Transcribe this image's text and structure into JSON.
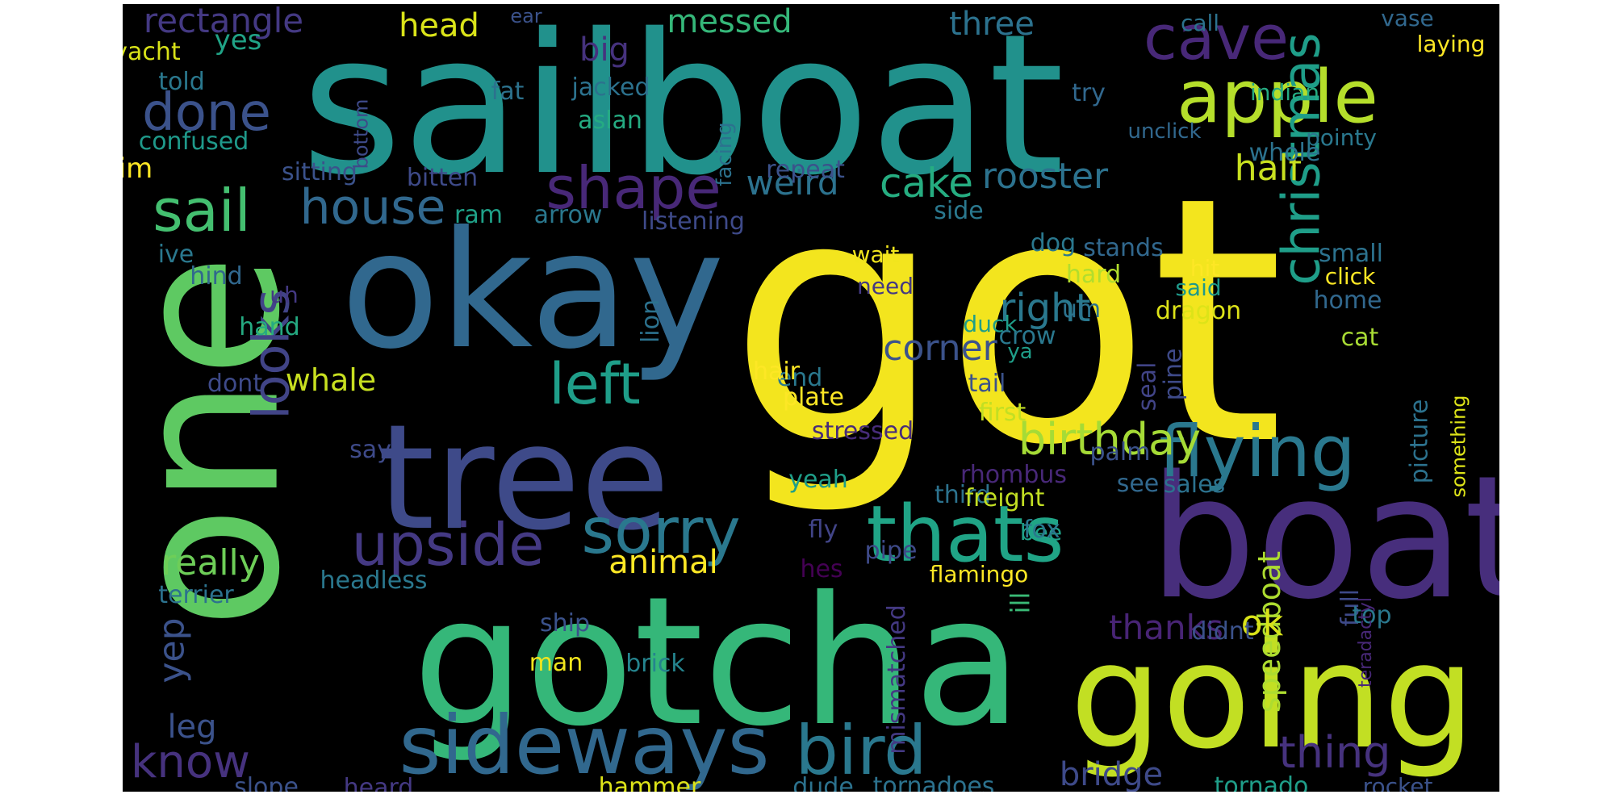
{
  "words": [
    {
      "text": "got",
      "color": "#f3e51e",
      "rotate": false
    },
    {
      "text": "sailboat",
      "color": "#21918c",
      "rotate": false
    },
    {
      "text": "okay",
      "color": "#31688e",
      "rotate": false
    },
    {
      "text": "boat",
      "color": "#472e7c",
      "rotate": false
    },
    {
      "text": "gotcha",
      "color": "#35b779",
      "rotate": false
    },
    {
      "text": "tree",
      "color": "#3e4a89",
      "rotate": false
    },
    {
      "text": "one",
      "color": "#5ec962",
      "rotate": true
    },
    {
      "text": "going",
      "color": "#c2df23",
      "rotate": false
    },
    {
      "text": "sideways",
      "color": "#31688e",
      "rotate": false
    },
    {
      "text": "flying",
      "color": "#2a788e",
      "rotate": false
    },
    {
      "text": "apple",
      "color": "#b5de2b",
      "rotate": false
    },
    {
      "text": "thats",
      "color": "#20a486",
      "rotate": false
    },
    {
      "text": "bird",
      "color": "#2a788e",
      "rotate": false
    },
    {
      "text": "cave",
      "color": "#482878",
      "rotate": false
    },
    {
      "text": "christmas",
      "color": "#1f9e89",
      "rotate": true
    },
    {
      "text": "sorry",
      "color": "#2a788e",
      "rotate": false
    },
    {
      "text": "upside",
      "color": "#443983",
      "rotate": false
    },
    {
      "text": "shape",
      "color": "#482878",
      "rotate": false
    },
    {
      "text": "left",
      "color": "#1f9e89",
      "rotate": false
    },
    {
      "text": "sail",
      "color": "#44bf70",
      "rotate": false
    },
    {
      "text": "house",
      "color": "#31688e",
      "rotate": false
    },
    {
      "text": "looks",
      "color": "#414487",
      "rotate": true
    },
    {
      "text": "birthday",
      "color": "#a5db36",
      "rotate": false
    },
    {
      "text": "thing",
      "color": "#46327e",
      "rotate": false
    },
    {
      "text": "know",
      "color": "#46327e",
      "rotate": false
    },
    {
      "text": "done",
      "color": "#3b528b",
      "rotate": false
    },
    {
      "text": "cake",
      "color": "#26ad81",
      "rotate": false
    },
    {
      "text": "rooster",
      "color": "#2c728e",
      "rotate": false
    },
    {
      "text": "right",
      "color": "#2a788e",
      "rotate": false
    },
    {
      "text": "corner",
      "color": "#3b528b",
      "rotate": false
    },
    {
      "text": "speedboat",
      "color": "#addc30",
      "rotate": true
    },
    {
      "text": "bridge",
      "color": "#3e4a89",
      "rotate": false
    },
    {
      "text": "really",
      "color": "#6ece58",
      "rotate": false
    },
    {
      "text": "animal",
      "color": "#fde725",
      "rotate": false
    },
    {
      "text": "yep",
      "color": "#3b528b",
      "rotate": true
    },
    {
      "text": "whale",
      "color": "#c8e020",
      "rotate": false
    },
    {
      "text": "weird",
      "color": "#2c728e",
      "rotate": false
    },
    {
      "text": "half",
      "color": "#c8e020",
      "rotate": false
    },
    {
      "text": "three",
      "color": "#2c728e",
      "rotate": false
    },
    {
      "text": "messed",
      "color": "#35b779",
      "rotate": false
    },
    {
      "text": "head",
      "color": "#dae319",
      "rotate": false
    },
    {
      "text": "rectangle",
      "color": "#443983",
      "rotate": false
    },
    {
      "text": "ok",
      "color": "#d8e219",
      "rotate": false
    },
    {
      "text": "thanks",
      "color": "#482475",
      "rotate": false
    },
    {
      "text": "ill",
      "color": "#3aba76",
      "rotate": true
    },
    {
      "text": "seal",
      "color": "#414487",
      "rotate": true
    },
    {
      "text": "leg",
      "color": "#3b528b",
      "rotate": false
    },
    {
      "text": "big",
      "color": "#46327e",
      "rotate": false
    },
    {
      "text": "yes",
      "color": "#20a386",
      "rotate": false
    },
    {
      "text": "im",
      "color": "#fde725",
      "rotate": false
    },
    {
      "text": "yacht",
      "color": "#d8e219",
      "rotate": false
    },
    {
      "text": "told",
      "color": "#2a788e",
      "rotate": false
    },
    {
      "text": "fat",
      "color": "#2c728e",
      "rotate": false
    },
    {
      "text": "jacked",
      "color": "#2c728e",
      "rotate": false
    },
    {
      "text": "aslan",
      "color": "#25ab82",
      "rotate": false
    },
    {
      "text": "confused",
      "color": "#1f998a",
      "rotate": false
    },
    {
      "text": "sitting",
      "color": "#3b528b",
      "rotate": false
    },
    {
      "text": "bitten",
      "color": "#3e4a89",
      "rotate": false
    },
    {
      "text": "ram",
      "color": "#1fa188",
      "rotate": false
    },
    {
      "text": "arrow",
      "color": "#2a788e",
      "rotate": false
    },
    {
      "text": "listening",
      "color": "#3e4a89",
      "rotate": false
    },
    {
      "text": "repeat",
      "color": "#3b528b",
      "rotate": false
    },
    {
      "text": "side",
      "color": "#2a788e",
      "rotate": false
    },
    {
      "text": "dog",
      "color": "#2a788e",
      "rotate": false
    },
    {
      "text": "stands",
      "color": "#31688e",
      "rotate": false
    },
    {
      "text": "small",
      "color": "#2c728e",
      "rotate": false
    },
    {
      "text": "click",
      "color": "#fde725",
      "rotate": false
    },
    {
      "text": "wait",
      "color": "#f1e51d",
      "rotate": false
    },
    {
      "text": "need",
      "color": "#443983",
      "rotate": false
    },
    {
      "text": "hit",
      "color": "#fde725",
      "rotate": false
    },
    {
      "text": "said",
      "color": "#1f998a",
      "rotate": false
    },
    {
      "text": "hard",
      "color": "#b2dd2d",
      "rotate": false
    },
    {
      "text": "dragon",
      "color": "#dde318",
      "rotate": false
    },
    {
      "text": "home",
      "color": "#31688e",
      "rotate": false
    },
    {
      "text": "duck",
      "color": "#1f9e89",
      "rotate": false
    },
    {
      "text": "crow",
      "color": "#2a788e",
      "rotate": false
    },
    {
      "text": "ya",
      "color": "#1f9e89",
      "rotate": false
    },
    {
      "text": "cat",
      "color": "#a8db34",
      "rotate": false
    },
    {
      "text": "end",
      "color": "#2a788e",
      "rotate": false
    },
    {
      "text": "tail",
      "color": "#3b528b",
      "rotate": false
    },
    {
      "text": "hair",
      "color": "#fde725",
      "rotate": false
    },
    {
      "text": "stressed",
      "color": "#472c7a",
      "rotate": false
    },
    {
      "text": "rhombus",
      "color": "#482878",
      "rotate": false
    },
    {
      "text": "third",
      "color": "#2c728e",
      "rotate": false
    },
    {
      "text": "bee",
      "color": "#1fa188",
      "rotate": false
    },
    {
      "text": "pipe",
      "color": "#3e4a89",
      "rotate": false
    },
    {
      "text": "fox",
      "color": "#2a788e",
      "rotate": false
    },
    {
      "text": "palm",
      "color": "#3b528b",
      "rotate": false
    },
    {
      "text": "plate",
      "color": "#fde725",
      "rotate": false
    },
    {
      "text": "first",
      "color": "#c2df23",
      "rotate": false
    },
    {
      "text": "freight",
      "color": "#c2df23",
      "rotate": false
    },
    {
      "text": "yeah",
      "color": "#1f9e89",
      "rotate": false
    },
    {
      "text": "fly",
      "color": "#414487",
      "rotate": false
    },
    {
      "text": "see",
      "color": "#31688e",
      "rotate": false
    },
    {
      "text": "sales",
      "color": "#2c728e",
      "rotate": false
    },
    {
      "text": "hes",
      "color": "#440154",
      "rotate": false
    },
    {
      "text": "flamingo",
      "color": "#fde725",
      "rotate": false
    },
    {
      "text": "full",
      "color": "#3e4a89",
      "rotate": true
    },
    {
      "text": "top",
      "color": "#2a788e",
      "rotate": false
    },
    {
      "text": "didnt",
      "color": "#3b528b",
      "rotate": false
    },
    {
      "text": "ship",
      "color": "#3b528b",
      "rotate": false
    },
    {
      "text": "man",
      "color": "#f1e51d",
      "rotate": false
    },
    {
      "text": "brick",
      "color": "#25848e",
      "rotate": false
    },
    {
      "text": "hammer",
      "color": "#dde318",
      "rotate": false
    },
    {
      "text": "dude",
      "color": "#2c728e",
      "rotate": false
    },
    {
      "text": "tornadoes",
      "color": "#2c728e",
      "rotate": false
    },
    {
      "text": "tornado",
      "color": "#1f9e89",
      "rotate": false
    },
    {
      "text": "rocket",
      "color": "#3b528b",
      "rotate": false
    },
    {
      "text": "heard",
      "color": "#443983",
      "rotate": false
    },
    {
      "text": "slope",
      "color": "#3b528b",
      "rotate": false
    },
    {
      "text": "terrier",
      "color": "#2c728e",
      "rotate": false
    },
    {
      "text": "headless",
      "color": "#2a788e",
      "rotate": false
    },
    {
      "text": "mismatched",
      "color": "#443983",
      "rotate": true
    },
    {
      "text": "teradactyl",
      "color": "#482878",
      "rotate": true
    },
    {
      "text": "picture",
      "color": "#2c728e",
      "rotate": true
    },
    {
      "text": "something",
      "color": "#dde318",
      "rotate": true
    },
    {
      "text": "pine",
      "color": "#3e4a89",
      "rotate": true
    },
    {
      "text": "lion",
      "color": "#2c728e",
      "rotate": true
    },
    {
      "text": "facing",
      "color": "#2c728e",
      "rotate": true
    },
    {
      "text": "bottom",
      "color": "#3e4a89",
      "rotate": true
    },
    {
      "text": "ear",
      "color": "#3b528b",
      "rotate": false
    },
    {
      "text": "call",
      "color": "#2c728e",
      "rotate": false
    },
    {
      "text": "vase",
      "color": "#31688e",
      "rotate": false
    },
    {
      "text": "laying",
      "color": "#fde725",
      "rotate": false
    },
    {
      "text": "indian",
      "color": "#25ab82",
      "rotate": false
    },
    {
      "text": "try",
      "color": "#31688e",
      "rotate": false
    },
    {
      "text": "unclick",
      "color": "#31688e",
      "rotate": false
    },
    {
      "text": "pointy",
      "color": "#2a788e",
      "rotate": false
    },
    {
      "text": "whole",
      "color": "#2c728e",
      "rotate": false
    },
    {
      "text": "ive",
      "color": "#2a788e",
      "rotate": false
    },
    {
      "text": "hind",
      "color": "#31688e",
      "rotate": false
    },
    {
      "text": "uh",
      "color": "#443983",
      "rotate": false
    },
    {
      "text": "hand",
      "color": "#25ab82",
      "rotate": false
    },
    {
      "text": "dont",
      "color": "#3e4a89",
      "rotate": false
    },
    {
      "text": "say",
      "color": "#3e4a89",
      "rotate": false
    },
    {
      "text": "um",
      "color": "#2c728e",
      "rotate": false
    }
  ]
}
